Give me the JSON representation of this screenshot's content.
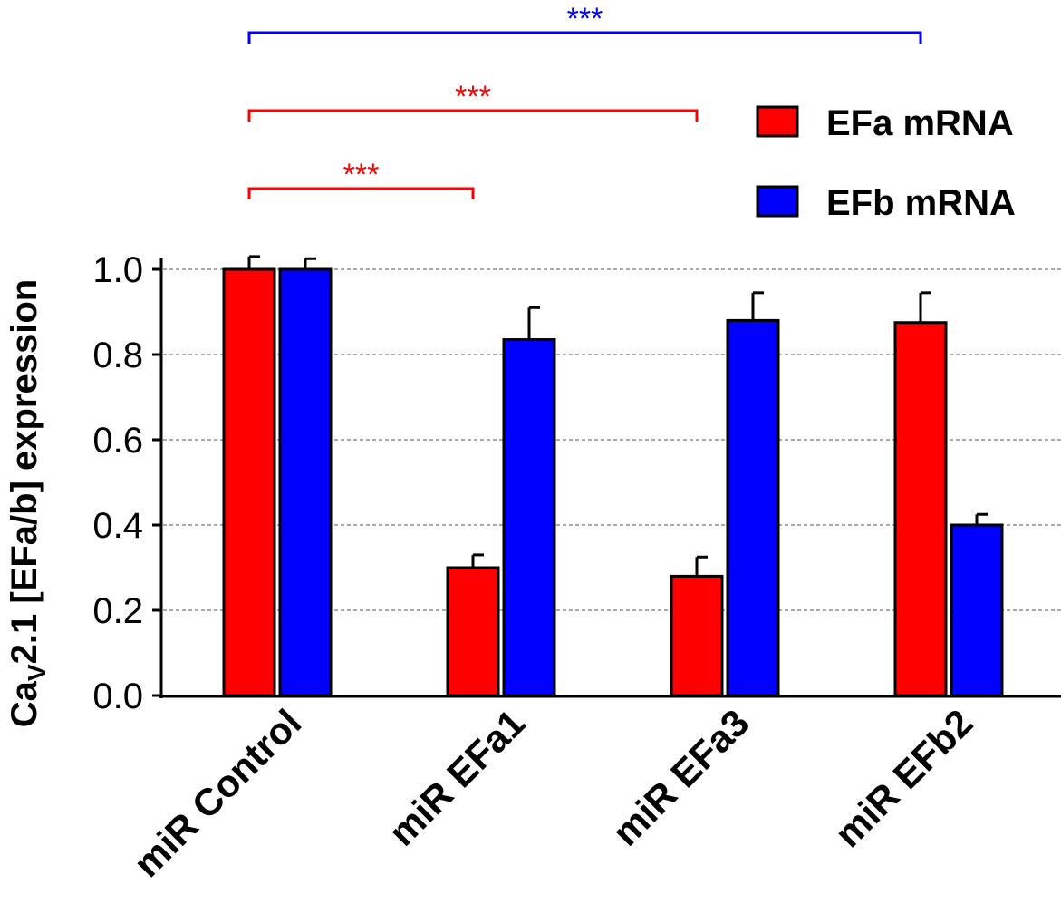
{
  "chart_data": {
    "type": "bar",
    "categories": [
      "miR Control",
      "miR EFa1",
      "miR EFa3",
      "miR EFb2"
    ],
    "series": [
      {
        "name": "EFa mRNA",
        "color": "#ff0000",
        "values": [
          1.0,
          0.3,
          0.28,
          0.875
        ],
        "errors": [
          0.03,
          0.03,
          0.045,
          0.07
        ]
      },
      {
        "name": "EFb mRNA",
        "color": "#0000ff",
        "values": [
          1.0,
          0.835,
          0.88,
          0.4
        ],
        "errors": [
          0.025,
          0.075,
          0.065,
          0.025
        ]
      }
    ],
    "ylabel": {
      "prefix": "Ca",
      "subscript": "V",
      "rest": "2.1 [EFa/b] expression"
    },
    "ylim": [
      0,
      1.0
    ],
    "yticks": [
      "0.0",
      "0.2",
      "0.4",
      "0.6",
      "0.8",
      "1.0"
    ],
    "grid": "horizontal-dashed",
    "legend": "top-right",
    "significance": [
      {
        "label": "***",
        "color": "#ff0000",
        "from_category": 0,
        "to_category": 1
      },
      {
        "label": "***",
        "color": "#ff0000",
        "from_category": 0,
        "to_category": 2
      },
      {
        "label": "***",
        "color": "#0000ff",
        "from_category": 0,
        "to_category": 3
      }
    ]
  }
}
